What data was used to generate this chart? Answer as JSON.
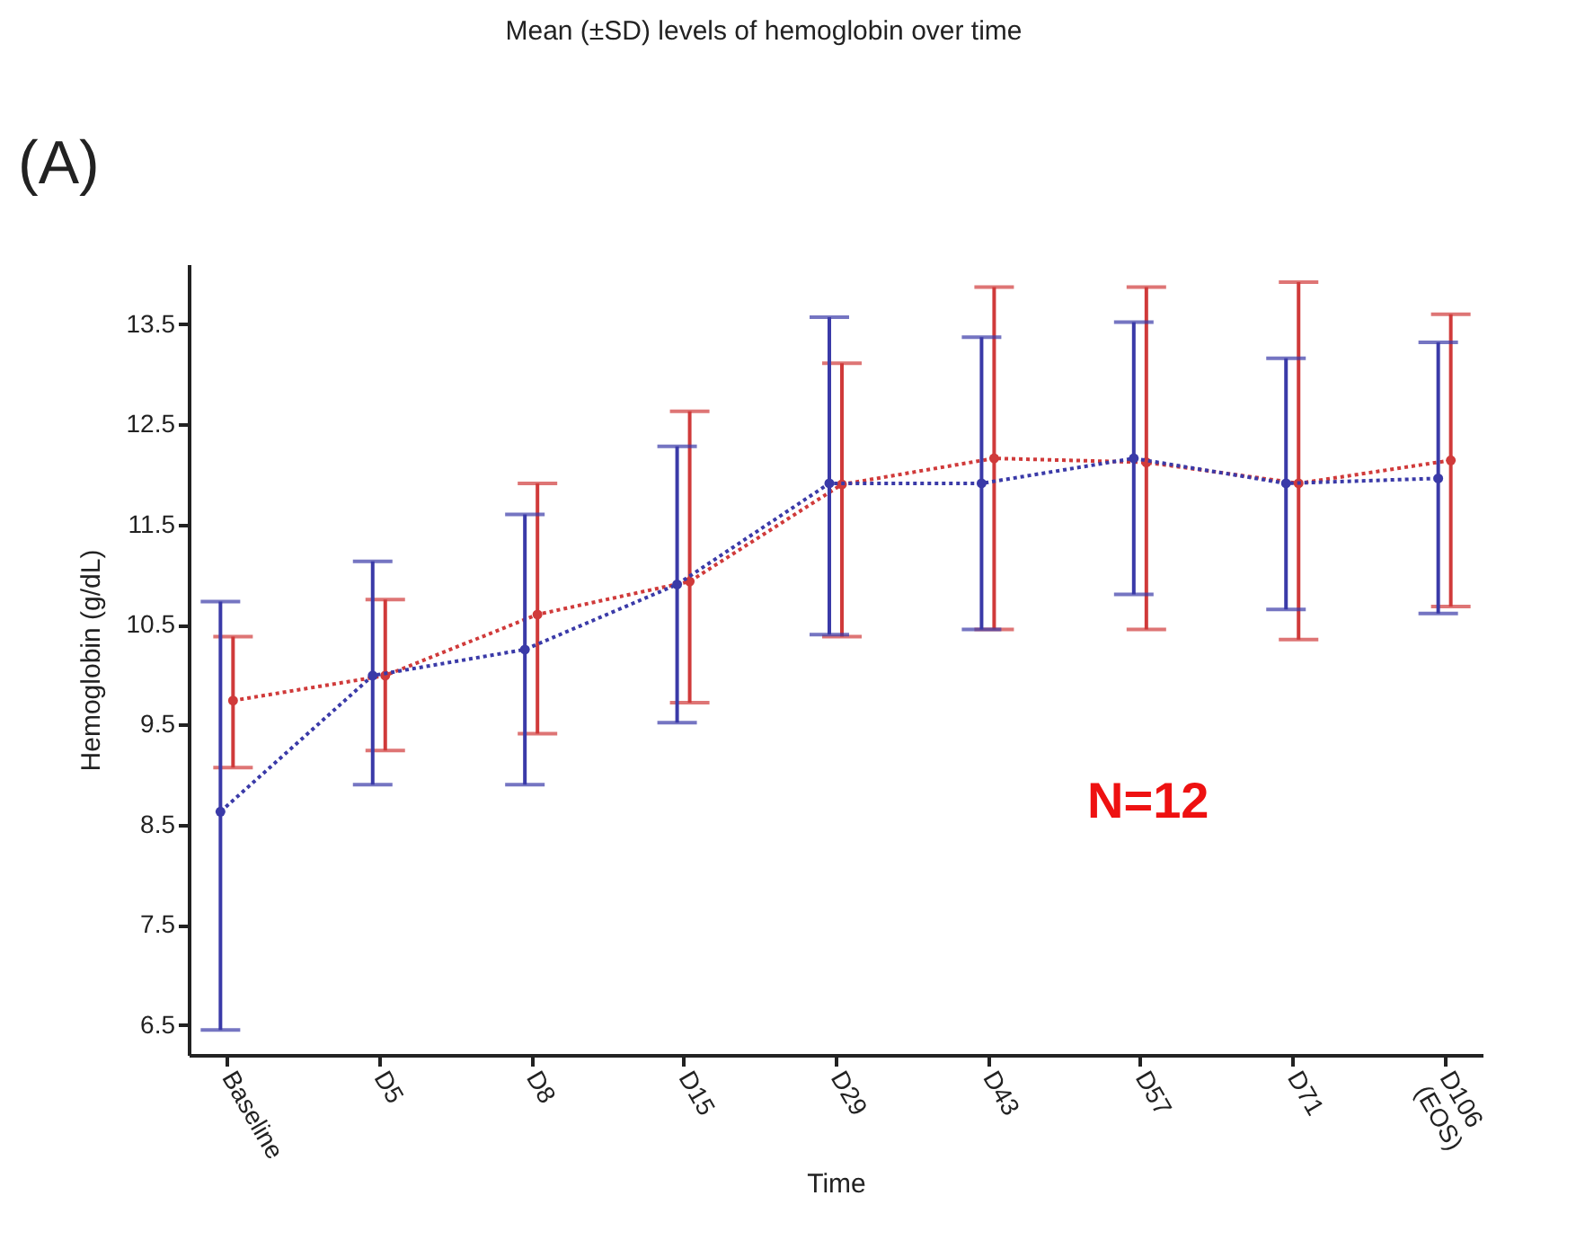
{
  "chart_data": {
    "type": "line",
    "title": "Mean (±SD) levels of hemoglobin over time",
    "xlabel": "Time",
    "ylabel": "Hemoglobin (g/dL)",
    "annotations": [
      "(A)",
      "N=12"
    ],
    "categories": [
      "Baseline",
      "D5",
      "D8",
      "D15",
      "D29",
      "D43",
      "D57",
      "D71",
      "D106 (EOS)"
    ],
    "ylim": [
      6.2,
      14.1
    ],
    "yticks": [
      6.5,
      7.5,
      8.5,
      9.5,
      10.5,
      11.5,
      12.5,
      13.5
    ],
    "grid": false,
    "marker": "circle",
    "line_style": "dotted",
    "series": [
      {
        "color": "#d03a3a",
        "values": [
          9.74,
          9.99,
          10.6,
          10.93,
          11.9,
          12.16,
          12.12,
          11.91,
          12.14
        ],
        "errors": [
          [
            9.07,
            10.38
          ],
          [
            9.24,
            10.75
          ],
          [
            9.41,
            11.91
          ],
          [
            9.72,
            12.63
          ],
          [
            10.38,
            13.11
          ],
          [
            10.45,
            13.87
          ],
          [
            10.45,
            13.87
          ],
          [
            10.35,
            13.92
          ],
          [
            10.68,
            13.6
          ]
        ]
      },
      {
        "color": "#3a3aa8",
        "values": [
          8.63,
          9.99,
          10.25,
          10.9,
          11.91,
          11.91,
          12.16,
          11.91,
          11.96
        ],
        "errors": [
          [
            6.45,
            10.73
          ],
          [
            8.9,
            11.13
          ],
          [
            8.9,
            11.6
          ],
          [
            9.52,
            12.28
          ],
          [
            10.4,
            13.57
          ],
          [
            10.45,
            13.37
          ],
          [
            10.8,
            13.52
          ],
          [
            10.65,
            13.16
          ],
          [
            10.61,
            13.32
          ]
        ]
      }
    ]
  }
}
